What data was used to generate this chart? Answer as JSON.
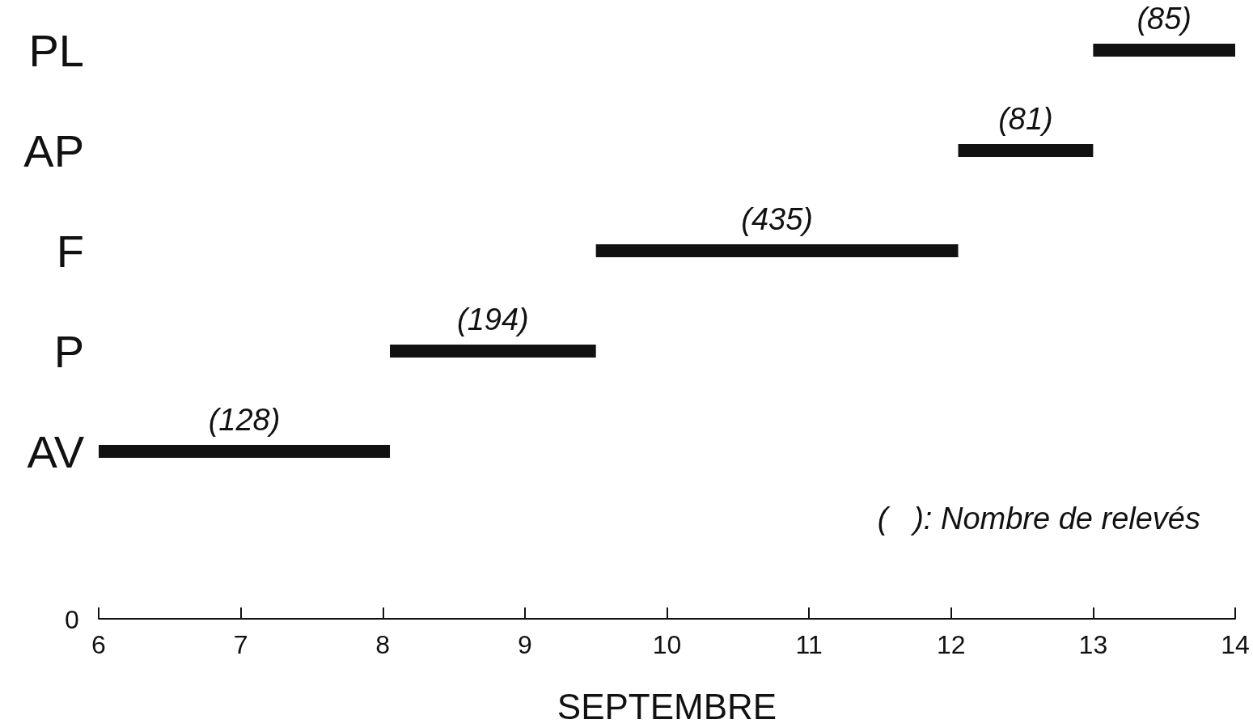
{
  "chart_data": {
    "type": "bar",
    "orientation": "horizontal",
    "categories": [
      "PL",
      "AP",
      "F",
      "P",
      "AV"
    ],
    "base": [
      13,
      12.05,
      9.5,
      8.05,
      6
    ],
    "values": [
      1,
      0.95,
      2.55,
      1.45,
      2.05
    ],
    "color": "#111111",
    "xlim": [
      6,
      14
    ],
    "xticks": [
      6,
      7,
      8,
      9,
      10,
      11,
      12,
      13,
      14
    ],
    "xlabel": "SEPTEMBRE",
    "annotations": [
      "0",
      "(   ): Nombre de relevés",
      "(85)",
      "(81)",
      "(435)",
      "(194)",
      "(128)"
    ],
    "grid": false
  }
}
